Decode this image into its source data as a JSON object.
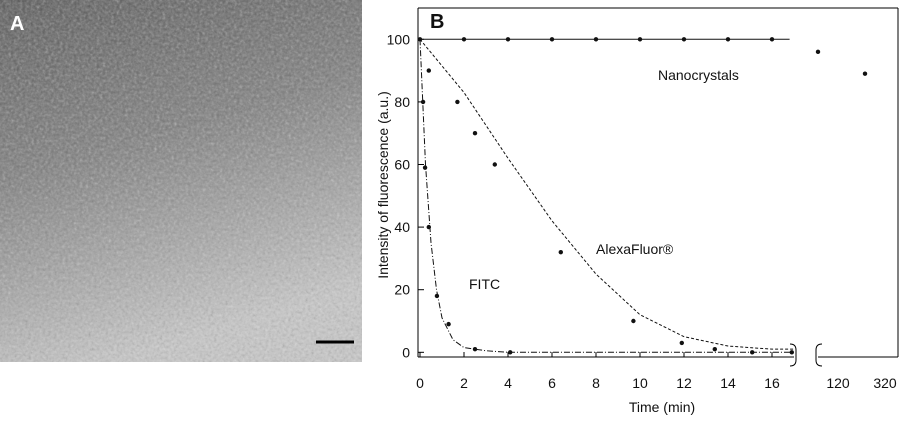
{
  "chart_data": {
    "type": "scatter",
    "panel_a_label": "A",
    "panel_label": "B",
    "xlabel": "Time (min)",
    "ylabel": "Intensity of fluorescence (a.u.)",
    "xlim": [
      0,
      17
    ],
    "ylim": [
      -1.5,
      110
    ],
    "xticks": [
      0,
      2,
      4,
      6,
      8,
      10,
      12,
      14,
      16
    ],
    "yticks": [
      0,
      20,
      40,
      60,
      80,
      100
    ],
    "break_xticks": [
      120,
      320
    ],
    "series": [
      {
        "name": "Nanocrystals",
        "color": "#111111",
        "fit_style": "solid",
        "x": [
          0,
          2,
          4,
          6,
          8,
          10,
          12,
          14,
          16
        ],
        "values": [
          100,
          100,
          100,
          100,
          100,
          100,
          100,
          100,
          100
        ],
        "break_x": [
          120,
          320
        ],
        "break_values": [
          96,
          89
        ],
        "fit_x": [
          0,
          16.8
        ],
        "fit_values": [
          100,
          100
        ]
      },
      {
        "name": "AlexaFluor®",
        "color": "#111111",
        "fit_style": "dashed",
        "x": [
          0.4,
          1.7,
          2.5,
          3.4,
          6.4,
          9.7,
          11.9,
          13.4,
          15.1,
          16.9
        ],
        "values": [
          90,
          80,
          70,
          60,
          32,
          10,
          3,
          1,
          0,
          0
        ],
        "fit_x": [
          0,
          2,
          4,
          6,
          8,
          10,
          12,
          14,
          16,
          17
        ],
        "fit_values": [
          100,
          83,
          62,
          42,
          25,
          12,
          5,
          2,
          1,
          1
        ]
      },
      {
        "name": "FITC",
        "color": "#111111",
        "fit_style": "dashdot",
        "x": [
          0.14,
          0.23,
          0.4,
          0.77,
          1.3,
          2.5,
          4.1
        ],
        "values": [
          80,
          59,
          40,
          18,
          9,
          1,
          0
        ],
        "fit_x": [
          0,
          0.25,
          0.5,
          0.75,
          1,
          1.5,
          2,
          3,
          4,
          17
        ],
        "fit_values": [
          100,
          60,
          35,
          20,
          11,
          4,
          1.5,
          0.5,
          0,
          0
        ]
      }
    ]
  }
}
